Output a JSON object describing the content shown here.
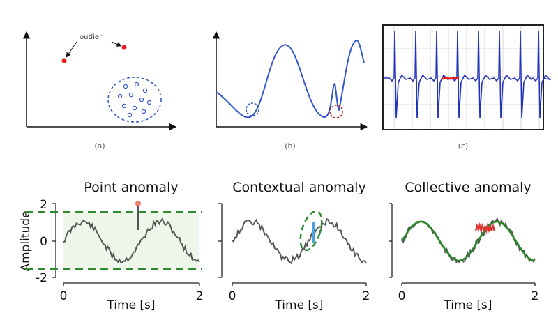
{
  "top": {
    "a": {
      "caption": "(a)",
      "annotation": "outlier"
    },
    "b": {
      "caption": "(b)"
    },
    "c": {
      "caption": "(c)"
    }
  },
  "bottom": {
    "ylabel": "Amplitude",
    "xlabel": "Time [s]",
    "x_ticks": [
      "0",
      "2"
    ],
    "y_ticks": [
      "2",
      "0",
      "-2"
    ],
    "panels": [
      {
        "title": "Point anomaly"
      },
      {
        "title": "Contextual anomaly"
      },
      {
        "title": "Collective anomaly"
      }
    ]
  },
  "colors": {
    "signal": "#555555",
    "threshold": "#2e8b2e",
    "band": "#eef6ea",
    "point_marker": "#f08070",
    "contextual": "#4aa3df",
    "collective": "#e03030",
    "fit": "#2a8a2a",
    "sketch": "#3355cc",
    "outlier": "#e02020"
  }
}
